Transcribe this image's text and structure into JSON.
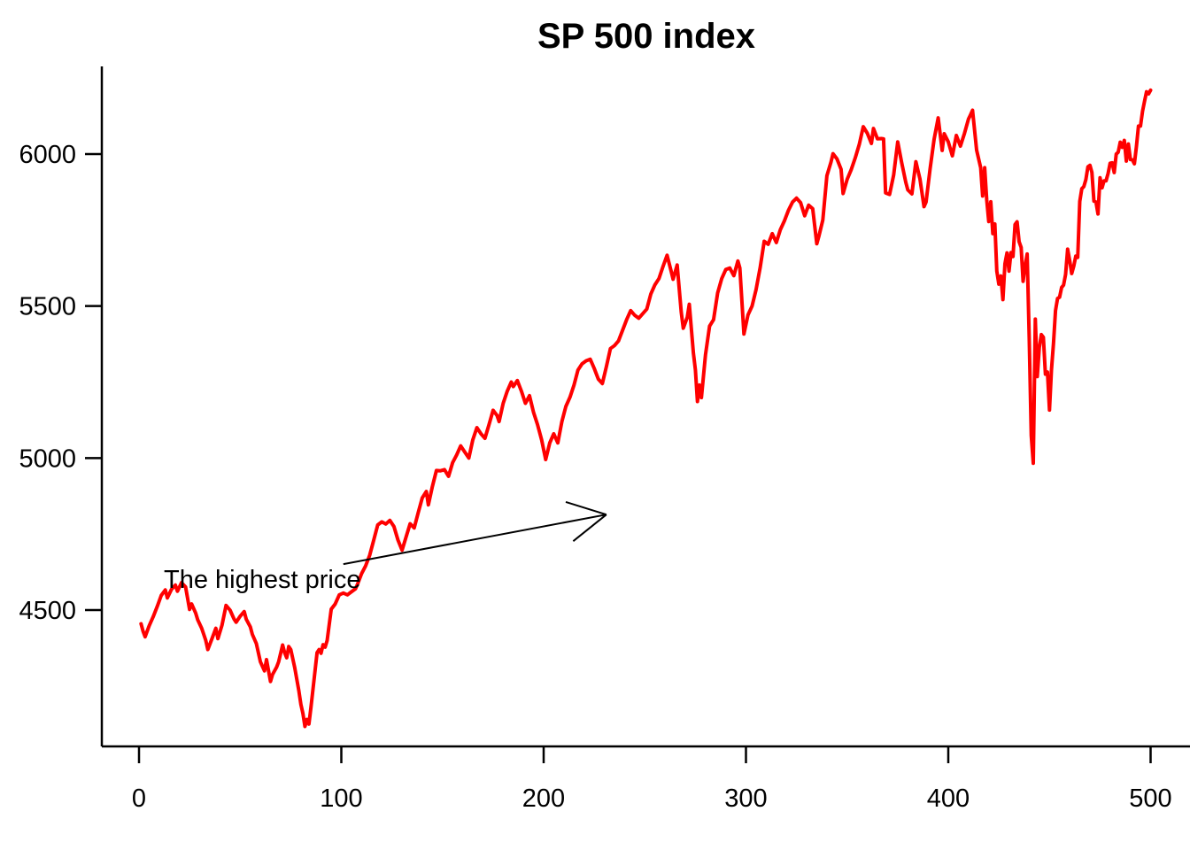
{
  "title": "SP 500 index",
  "colors": {
    "background": "#FFFFFF",
    "line": "#FF0000",
    "axis": "#000000",
    "text": "#000000"
  },
  "chart_data": {
    "type": "line",
    "title": "SP 500 index",
    "xlabel": "",
    "ylabel": "",
    "x_ticks": [
      0,
      100,
      200,
      300,
      400,
      500
    ],
    "y_ticks": [
      4500,
      5000,
      5500,
      6000
    ],
    "xlim": [
      -19,
      523
    ],
    "ylim": [
      4052,
      6285
    ],
    "grid": false,
    "legend": null,
    "annotation": {
      "text": "The highest price",
      "arrow_from_xy": [
        101,
        4651
      ],
      "arrow_to_xy": [
        231,
        4814
      ]
    },
    "series": [
      {
        "name": "SP 500 index",
        "color": "#FF0000",
        "points": [
          [
            1,
            4455
          ],
          [
            2,
            4430
          ],
          [
            3,
            4412
          ],
          [
            5,
            4448
          ],
          [
            7,
            4478
          ],
          [
            9,
            4512
          ],
          [
            11,
            4548
          ],
          [
            13,
            4566
          ],
          [
            14,
            4540
          ],
          [
            16,
            4568
          ],
          [
            18,
            4582
          ],
          [
            19,
            4562
          ],
          [
            21,
            4590
          ],
          [
            23,
            4576
          ],
          [
            25,
            4502
          ],
          [
            26,
            4520
          ],
          [
            28,
            4490
          ],
          [
            29,
            4468
          ],
          [
            31,
            4440
          ],
          [
            33,
            4400
          ],
          [
            34,
            4370
          ],
          [
            36,
            4405
          ],
          [
            38,
            4440
          ],
          [
            39,
            4406
          ],
          [
            41,
            4450
          ],
          [
            43,
            4515
          ],
          [
            45,
            4500
          ],
          [
            47,
            4470
          ],
          [
            48,
            4460
          ],
          [
            50,
            4480
          ],
          [
            52,
            4495
          ],
          [
            53,
            4470
          ],
          [
            55,
            4445
          ],
          [
            56,
            4420
          ],
          [
            58,
            4390
          ],
          [
            60,
            4330
          ],
          [
            62,
            4300
          ],
          [
            63,
            4337
          ],
          [
            65,
            4265
          ],
          [
            66,
            4288
          ],
          [
            68,
            4312
          ],
          [
            69,
            4330
          ],
          [
            71,
            4385
          ],
          [
            72,
            4360
          ],
          [
            73,
            4343
          ],
          [
            74,
            4380
          ],
          [
            75,
            4370
          ],
          [
            77,
            4310
          ],
          [
            79,
            4235
          ],
          [
            80,
            4190
          ],
          [
            81,
            4160
          ],
          [
            82,
            4117
          ],
          [
            83,
            4140
          ],
          [
            84,
            4125
          ],
          [
            85,
            4180
          ],
          [
            86,
            4240
          ],
          [
            87,
            4300
          ],
          [
            88,
            4360
          ],
          [
            89,
            4370
          ],
          [
            90,
            4358
          ],
          [
            91,
            4386
          ],
          [
            92,
            4378
          ],
          [
            93,
            4400
          ],
          [
            95,
            4503
          ],
          [
            97,
            4520
          ],
          [
            99,
            4550
          ],
          [
            101,
            4556
          ],
          [
            103,
            4550
          ],
          [
            105,
            4560
          ],
          [
            107,
            4570
          ],
          [
            108,
            4585
          ],
          [
            110,
            4620
          ],
          [
            112,
            4645
          ],
          [
            114,
            4680
          ],
          [
            116,
            4730
          ],
          [
            118,
            4780
          ],
          [
            120,
            4790
          ],
          [
            122,
            4783
          ],
          [
            124,
            4795
          ],
          [
            126,
            4775
          ],
          [
            128,
            4730
          ],
          [
            130,
            4697
          ],
          [
            132,
            4740
          ],
          [
            134,
            4784
          ],
          [
            136,
            4770
          ],
          [
            138,
            4820
          ],
          [
            140,
            4869
          ],
          [
            142,
            4890
          ],
          [
            143,
            4846
          ],
          [
            145,
            4906
          ],
          [
            147,
            4959
          ],
          [
            149,
            4958
          ],
          [
            151,
            4962
          ],
          [
            153,
            4940
          ],
          [
            155,
            4985
          ],
          [
            157,
            5010
          ],
          [
            159,
            5040
          ],
          [
            161,
            5020
          ],
          [
            163,
            5000
          ],
          [
            165,
            5060
          ],
          [
            167,
            5100
          ],
          [
            169,
            5080
          ],
          [
            171,
            5065
          ],
          [
            173,
            5110
          ],
          [
            175,
            5157
          ],
          [
            177,
            5140
          ],
          [
            178,
            5120
          ],
          [
            180,
            5180
          ],
          [
            182,
            5220
          ],
          [
            184,
            5250
          ],
          [
            185,
            5235
          ],
          [
            187,
            5255
          ],
          [
            189,
            5220
          ],
          [
            191,
            5180
          ],
          [
            193,
            5205
          ],
          [
            195,
            5150
          ],
          [
            197,
            5110
          ],
          [
            199,
            5060
          ],
          [
            201,
            4995
          ],
          [
            203,
            5050
          ],
          [
            205,
            5080
          ],
          [
            207,
            5050
          ],
          [
            209,
            5120
          ],
          [
            211,
            5170
          ],
          [
            213,
            5200
          ],
          [
            215,
            5240
          ],
          [
            217,
            5290
          ],
          [
            219,
            5310
          ],
          [
            221,
            5320
          ],
          [
            223,
            5325
          ],
          [
            225,
            5295
          ],
          [
            227,
            5260
          ],
          [
            229,
            5245
          ],
          [
            231,
            5300
          ],
          [
            233,
            5360
          ],
          [
            235,
            5370
          ],
          [
            237,
            5385
          ],
          [
            239,
            5420
          ],
          [
            241,
            5455
          ],
          [
            243,
            5485
          ],
          [
            245,
            5470
          ],
          [
            247,
            5460
          ],
          [
            249,
            5475
          ],
          [
            251,
            5490
          ],
          [
            253,
            5540
          ],
          [
            255,
            5570
          ],
          [
            257,
            5590
          ],
          [
            259,
            5630
          ],
          [
            261,
            5667
          ],
          [
            263,
            5615
          ],
          [
            264,
            5588
          ],
          [
            266,
            5635
          ],
          [
            268,
            5480
          ],
          [
            269,
            5427
          ],
          [
            271,
            5463
          ],
          [
            272,
            5506
          ],
          [
            274,
            5346
          ],
          [
            275,
            5290
          ],
          [
            276,
            5186
          ],
          [
            277,
            5240
          ],
          [
            278,
            5199
          ],
          [
            280,
            5340
          ],
          [
            282,
            5434
          ],
          [
            284,
            5455
          ],
          [
            286,
            5543
          ],
          [
            288,
            5590
          ],
          [
            290,
            5620
          ],
          [
            292,
            5625
          ],
          [
            294,
            5600
          ],
          [
            296,
            5648
          ],
          [
            297,
            5625
          ],
          [
            299,
            5408
          ],
          [
            301,
            5471
          ],
          [
            303,
            5500
          ],
          [
            305,
            5554
          ],
          [
            307,
            5626
          ],
          [
            309,
            5713
          ],
          [
            311,
            5703
          ],
          [
            313,
            5738
          ],
          [
            315,
            5709
          ],
          [
            317,
            5751
          ],
          [
            319,
            5780
          ],
          [
            321,
            5815
          ],
          [
            323,
            5842
          ],
          [
            325,
            5855
          ],
          [
            327,
            5840
          ],
          [
            329,
            5797
          ],
          [
            331,
            5832
          ],
          [
            333,
            5820
          ],
          [
            335,
            5705
          ],
          [
            336,
            5729
          ],
          [
            338,
            5783
          ],
          [
            340,
            5929
          ],
          [
            342,
            5973
          ],
          [
            343,
            6001
          ],
          [
            345,
            5984
          ],
          [
            347,
            5950
          ],
          [
            348,
            5870
          ],
          [
            350,
            5917
          ],
          [
            352,
            5948
          ],
          [
            354,
            5987
          ],
          [
            356,
            6032
          ],
          [
            358,
            6090
          ],
          [
            360,
            6068
          ],
          [
            362,
            6035
          ],
          [
            363,
            6084
          ],
          [
            365,
            6050
          ],
          [
            367,
            6051
          ],
          [
            368,
            6050
          ],
          [
            369,
            5872
          ],
          [
            371,
            5867
          ],
          [
            373,
            5931
          ],
          [
            375,
            6040
          ],
          [
            377,
            5971
          ],
          [
            379,
            5907
          ],
          [
            380,
            5882
          ],
          [
            382,
            5869
          ],
          [
            384,
            5975
          ],
          [
            386,
            5918
          ],
          [
            388,
            5827
          ],
          [
            389,
            5842
          ],
          [
            391,
            5950
          ],
          [
            393,
            6049
          ],
          [
            395,
            6119
          ],
          [
            397,
            6012
          ],
          [
            398,
            6067
          ],
          [
            400,
            6040
          ],
          [
            402,
            5994
          ],
          [
            404,
            6061
          ],
          [
            406,
            6026
          ],
          [
            408,
            6068
          ],
          [
            410,
            6115
          ],
          [
            411,
            6129
          ],
          [
            412,
            6144
          ],
          [
            414,
            6013
          ],
          [
            416,
            5955
          ],
          [
            417,
            5862
          ],
          [
            418,
            5955
          ],
          [
            419,
            5850
          ],
          [
            420,
            5778
          ],
          [
            421,
            5843
          ],
          [
            422,
            5738
          ],
          [
            423,
            5770
          ],
          [
            424,
            5615
          ],
          [
            425,
            5572
          ],
          [
            426,
            5599
          ],
          [
            427,
            5521
          ],
          [
            428,
            5639
          ],
          [
            429,
            5675
          ],
          [
            430,
            5615
          ],
          [
            431,
            5676
          ],
          [
            432,
            5663
          ],
          [
            433,
            5768
          ],
          [
            434,
            5777
          ],
          [
            435,
            5712
          ],
          [
            436,
            5693
          ],
          [
            437,
            5581
          ],
          [
            438,
            5633
          ],
          [
            439,
            5671
          ],
          [
            440,
            5396
          ],
          [
            441,
            5074
          ],
          [
            442,
            4983
          ],
          [
            443,
            5457
          ],
          [
            444,
            5268
          ],
          [
            445,
            5363
          ],
          [
            446,
            5406
          ],
          [
            447,
            5397
          ],
          [
            448,
            5276
          ],
          [
            449,
            5283
          ],
          [
            450,
            5158
          ],
          [
            451,
            5288
          ],
          [
            452,
            5376
          ],
          [
            453,
            5485
          ],
          [
            454,
            5525
          ],
          [
            455,
            5529
          ],
          [
            456,
            5561
          ],
          [
            457,
            5569
          ],
          [
            458,
            5604
          ],
          [
            459,
            5687
          ],
          [
            460,
            5650
          ],
          [
            461,
            5607
          ],
          [
            462,
            5631
          ],
          [
            463,
            5664
          ],
          [
            464,
            5660
          ],
          [
            465,
            5844
          ],
          [
            466,
            5886
          ],
          [
            467,
            5893
          ],
          [
            468,
            5916
          ],
          [
            469,
            5958
          ],
          [
            470,
            5963
          ],
          [
            471,
            5940
          ],
          [
            472,
            5845
          ],
          [
            473,
            5842
          ],
          [
            474,
            5803
          ],
          [
            475,
            5922
          ],
          [
            476,
            5889
          ],
          [
            477,
            5912
          ],
          [
            478,
            5912
          ],
          [
            479,
            5936
          ],
          [
            480,
            5970
          ],
          [
            481,
            5971
          ],
          [
            482,
            5939
          ],
          [
            483,
            6000
          ],
          [
            484,
            6006
          ],
          [
            485,
            6039
          ],
          [
            486,
            6022
          ],
          [
            487,
            6045
          ],
          [
            488,
            5977
          ],
          [
            489,
            6033
          ],
          [
            490,
            5982
          ],
          [
            491,
            5981
          ],
          [
            492,
            5968
          ],
          [
            493,
            6025
          ],
          [
            494,
            6092
          ],
          [
            495,
            6092
          ],
          [
            496,
            6141
          ],
          [
            497,
            6173
          ],
          [
            498,
            6205
          ],
          [
            499,
            6198
          ],
          [
            500,
            6210
          ]
        ]
      }
    ]
  }
}
